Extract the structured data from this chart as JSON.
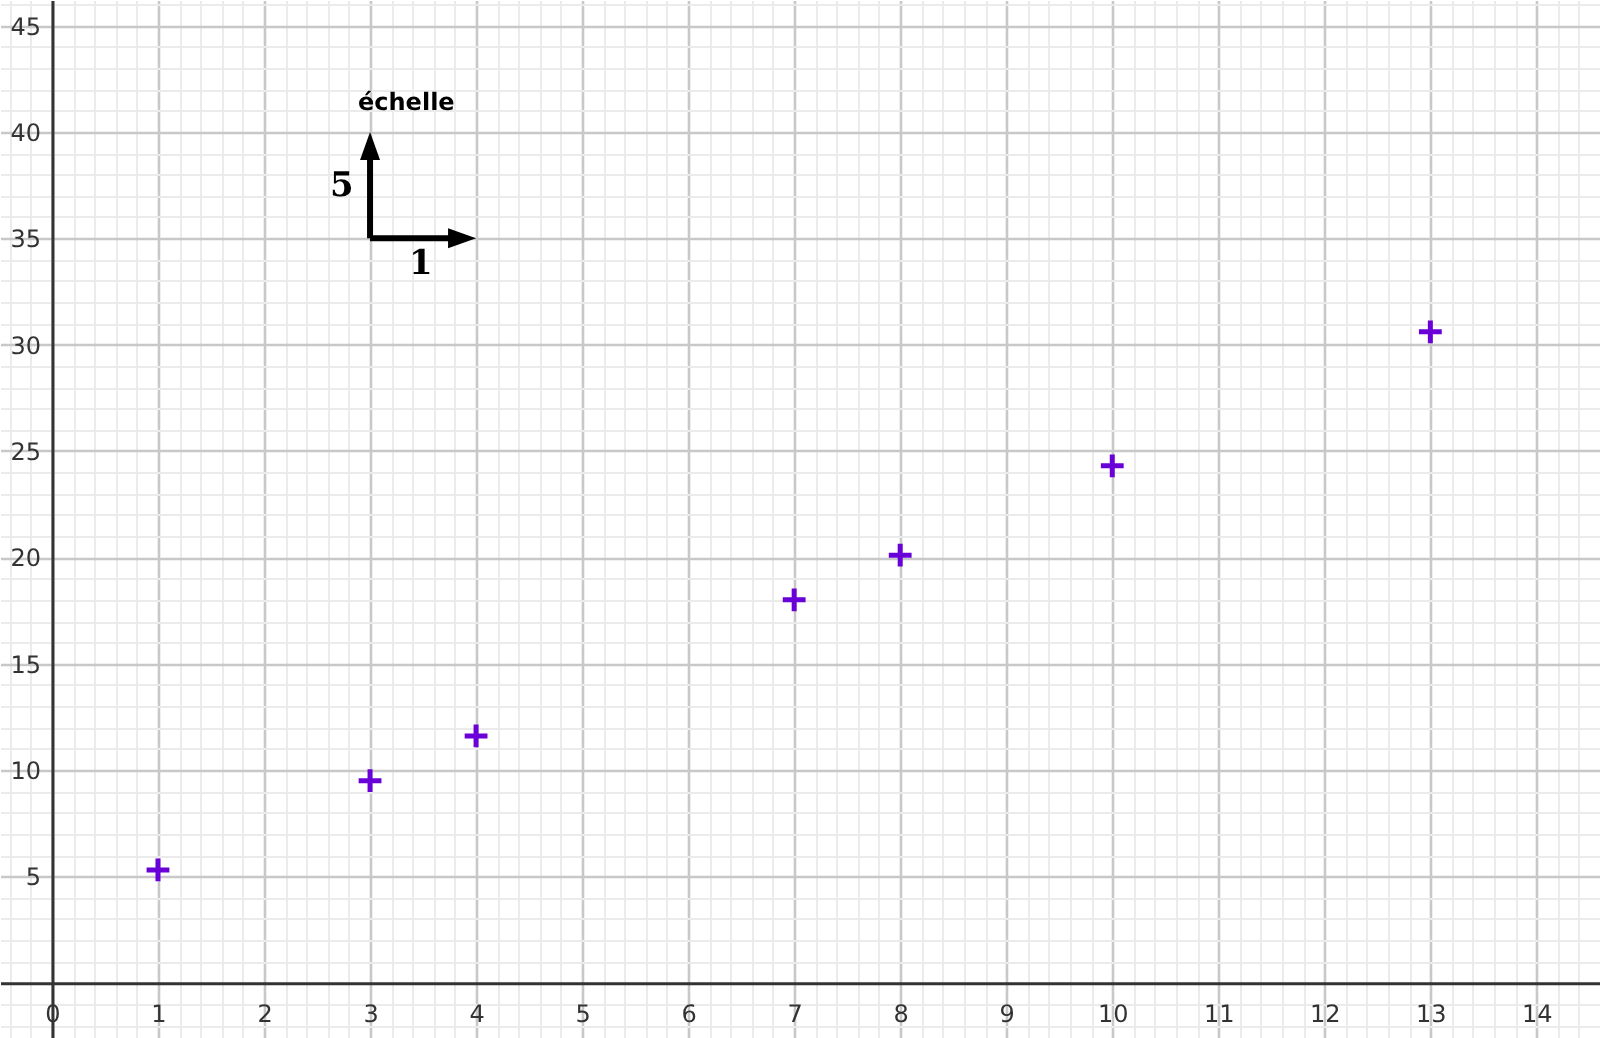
{
  "chart_data": {
    "type": "scatter",
    "x": [
      1,
      3,
      4,
      7,
      8,
      10,
      13
    ],
    "series": [
      {
        "color": "#6a00d8",
        "values": [
          5.3,
          9.5,
          11.6,
          18,
          20.1,
          24.3,
          30.6
        ]
      }
    ],
    "xlim": [
      -0.49,
      14.6
    ],
    "ylim": [
      -2.6,
      46.2
    ],
    "xticks": [
      0,
      1,
      2,
      3,
      4,
      5,
      6,
      7,
      8,
      9,
      10,
      11,
      12,
      13,
      14
    ],
    "yticks": [
      5,
      10,
      15,
      20,
      25,
      30,
      35,
      40,
      45
    ],
    "grid": true,
    "marker": "cross",
    "annotations": [
      "échelle",
      "5",
      "1"
    ]
  }
}
